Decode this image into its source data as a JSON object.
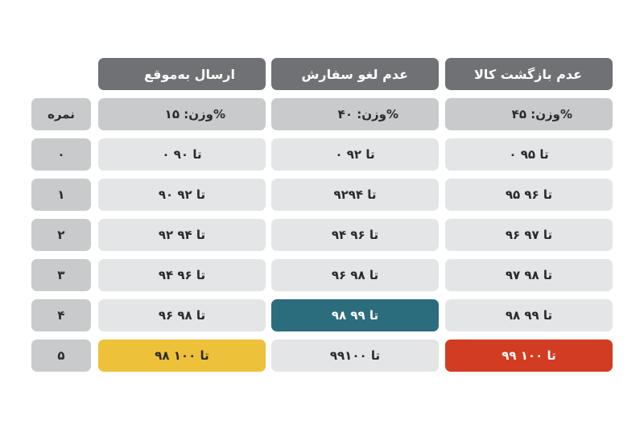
{
  "columns": [
    {
      "title": "ارسال به‌موقع",
      "weight": "وزن: ۱۵%"
    },
    {
      "title": "عدم لغو سفارش",
      "weight": "وزن: ۴۰%"
    },
    {
      "title": "عدم بازگشت کالا",
      "weight": "وزن: ۴۵%"
    }
  ],
  "score_header": "نمره",
  "rows": [
    {
      "score": "۰",
      "values": [
        "۰ تا ۹۰",
        "۰ تا ۹۲",
        "۰ تا ۹۵"
      ]
    },
    {
      "score": "۱",
      "values": [
        "۹۰ تا ۹۲",
        "۹۲تا ۹۴",
        "۹۵ تا ۹۶"
      ]
    },
    {
      "score": "۲",
      "values": [
        "۹۲ تا ۹۴",
        "۹۴ تا ۹۶",
        "۹۶ تا ۹۷"
      ]
    },
    {
      "score": "۳",
      "values": [
        "۹۴ تا ۹۶",
        "۹۶ تا ۹۸",
        "۹۷ تا ۹۸"
      ]
    },
    {
      "score": "۴",
      "values": [
        "۹۶ تا ۹۸",
        "۹۸ تا ۹۹",
        "۹۸ تا ۹۹"
      ]
    },
    {
      "score": "۵",
      "values": [
        "۹۸ تا ۱۰۰",
        "۹۹تا ۱۰۰",
        "۹۹ تا ۱۰۰"
      ]
    }
  ],
  "highlight_colors": {
    "teal": "#2b6c7d",
    "yellow": "#eec13a",
    "red": "#d23c22"
  }
}
